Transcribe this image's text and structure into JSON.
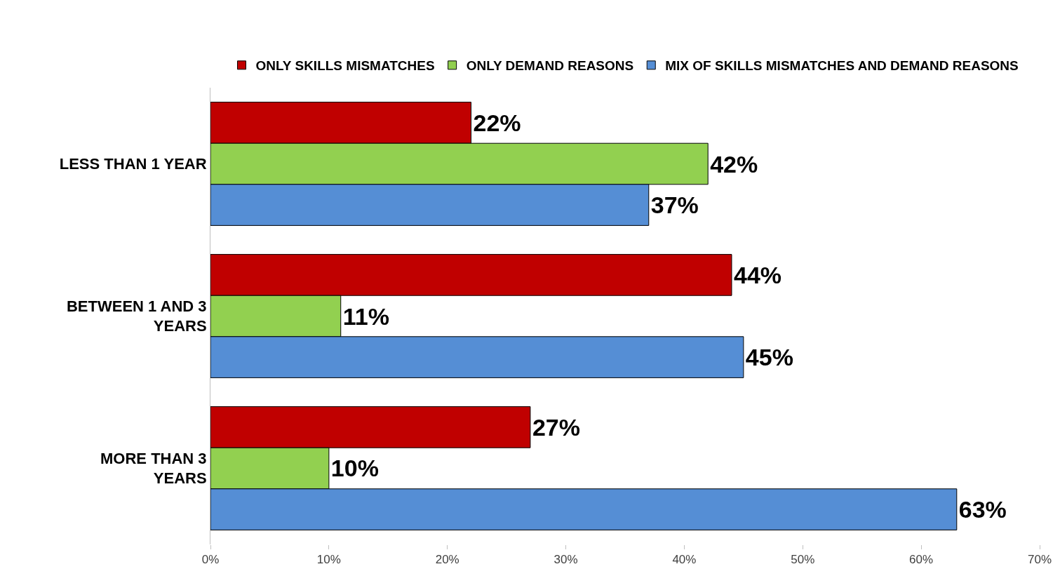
{
  "chart_data": {
    "type": "bar",
    "orientation": "horizontal",
    "categories": [
      "LESS THAN 1 YEAR",
      "BETWEEN 1 AND 3 YEARS",
      "MORE THAN 3 YEARS"
    ],
    "series": [
      {
        "name": "ONLY SKILLS MISMATCHES",
        "color": "#c00000",
        "values": [
          22,
          44,
          27
        ],
        "value_labels": [
          "22%",
          "44%",
          "27%"
        ]
      },
      {
        "name": "ONLY DEMAND REASONS",
        "color": "#92d050",
        "values": [
          42,
          11,
          10
        ],
        "value_labels": [
          "42%",
          "11%",
          "10%"
        ]
      },
      {
        "name": "MIX OF SKILLS MISMATCHES AND DEMAND REASONS",
        "color": "#558ed5",
        "values": [
          37,
          45,
          63
        ],
        "value_labels": [
          "37%",
          "45%",
          "63%"
        ]
      }
    ],
    "xlim": [
      0,
      70
    ],
    "xticks": [
      {
        "value": 0,
        "label": "0%"
      },
      {
        "value": 10,
        "label": "10%"
      },
      {
        "value": 20,
        "label": "20%"
      },
      {
        "value": 30,
        "label": "30%"
      },
      {
        "value": 40,
        "label": "40%"
      },
      {
        "value": 50,
        "label": "50%"
      },
      {
        "value": 60,
        "label": "60%"
      },
      {
        "value": 70,
        "label": "70%"
      }
    ],
    "legend": "top"
  }
}
